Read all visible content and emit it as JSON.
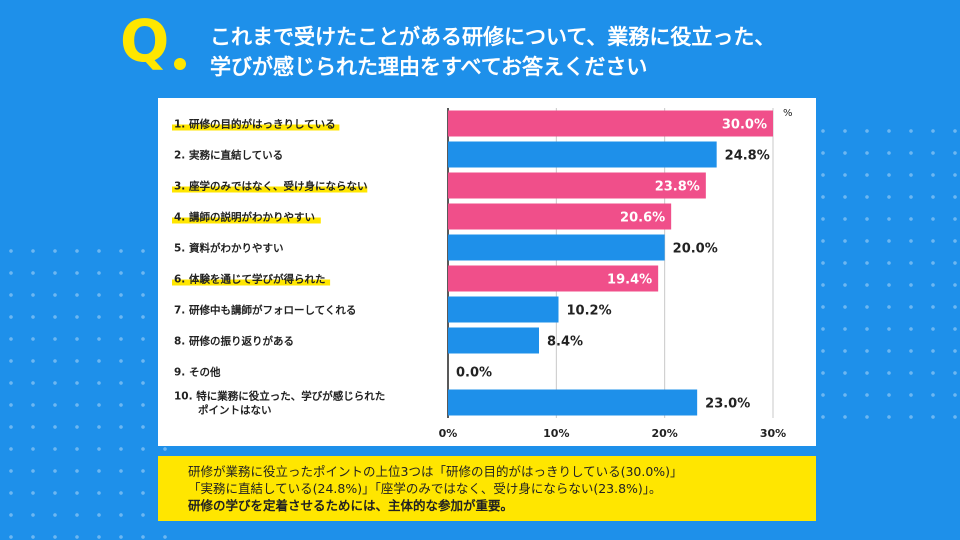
{
  "header": {
    "q_mark": "Q",
    "question_line1": "これまで受けたことがある研修について、業務に役立った、",
    "question_line2": "学びが感じられた理由をすべてお答えください"
  },
  "colors": {
    "background": "#1e90ea",
    "highlight": "#ffe600",
    "bar_pink": "#f04f8a",
    "bar_blue": "#1e90ea"
  },
  "chart_data": {
    "type": "bar",
    "orientation": "horizontal",
    "unit_label": "%",
    "xlim": [
      0,
      30
    ],
    "ticks": [
      0,
      10,
      20,
      30
    ],
    "tick_labels": [
      "0%",
      "10%",
      "20%",
      "30%"
    ],
    "categories": [
      {
        "label": "1.  研修の目的がはっきりしている",
        "label2": "",
        "value": 30.0,
        "value_label": "30.0%",
        "color": "pink",
        "highlight": true
      },
      {
        "label": "2.  実務に直結している",
        "label2": "",
        "value": 24.8,
        "value_label": "24.8%",
        "color": "blue",
        "highlight": false
      },
      {
        "label": "3.  座学のみではなく、受け身にならない",
        "label2": "",
        "value": 23.8,
        "value_label": "23.8%",
        "color": "pink",
        "highlight": true
      },
      {
        "label": "4.  講師の説明がわかりやすい",
        "label2": "",
        "value": 20.6,
        "value_label": "20.6%",
        "color": "pink",
        "highlight": true
      },
      {
        "label": "5.  資料がわかりやすい",
        "label2": "",
        "value": 20.0,
        "value_label": "20.0%",
        "color": "blue",
        "highlight": false
      },
      {
        "label": "6.  体験を通じて学びが得られた",
        "label2": "",
        "value": 19.4,
        "value_label": "19.4%",
        "color": "pink",
        "highlight": true
      },
      {
        "label": "7.  研修中も講師がフォローしてくれる",
        "label2": "",
        "value": 10.2,
        "value_label": "10.2%",
        "color": "blue",
        "highlight": false
      },
      {
        "label": "8.  研修の振り返りがある",
        "label2": "",
        "value": 8.4,
        "value_label": "8.4%",
        "color": "blue",
        "highlight": false
      },
      {
        "label": "9.  その他",
        "label2": "",
        "value": 0.0,
        "value_label": "0.0%",
        "color": "blue",
        "highlight": false
      },
      {
        "label": "10. 特に業務に役立った、学びが感じられた",
        "label2": "ポイントはない",
        "value": 23.0,
        "value_label": "23.0%",
        "color": "blue",
        "highlight": false
      }
    ]
  },
  "summary": {
    "line1": "研修が業務に役立ったポイントの上位3つは「研修の目的がはっきりしている(30.0%)」",
    "line2": "「実務に直結している(24.8%)」「座学のみではなく、受け身にならない(23.8%)」。",
    "line3": "研修の学びを定着させるためには、主体的な参加が重要。"
  }
}
